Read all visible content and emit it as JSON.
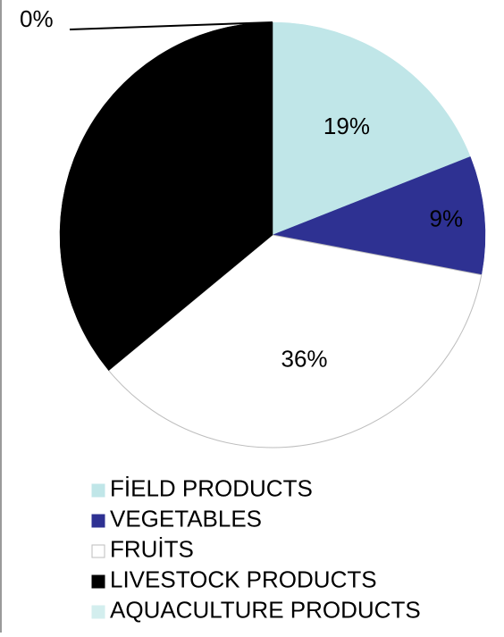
{
  "chart_data": {
    "type": "pie",
    "slices": [
      {
        "label": "FİELD PRODUCTS",
        "value": 19,
        "display": "19%",
        "color": "#c0e6e8"
      },
      {
        "label": "VEGETABLES",
        "value": 9,
        "display": "9%",
        "color": "#2e3192"
      },
      {
        "label": "FRUİTS",
        "value": 36,
        "display": "36%",
        "color": "#ffffff"
      },
      {
        "label": "LIVESTOCK PRODUCTS",
        "value": 36,
        "display": "",
        "color": "#000000"
      },
      {
        "label": "AQUACULTURE PRODUCTS",
        "value": 0,
        "display": "0%",
        "color": "#d3eeee"
      }
    ],
    "legend_position": "bottom",
    "start_angle_deg": 0,
    "direction": "clockwise"
  }
}
